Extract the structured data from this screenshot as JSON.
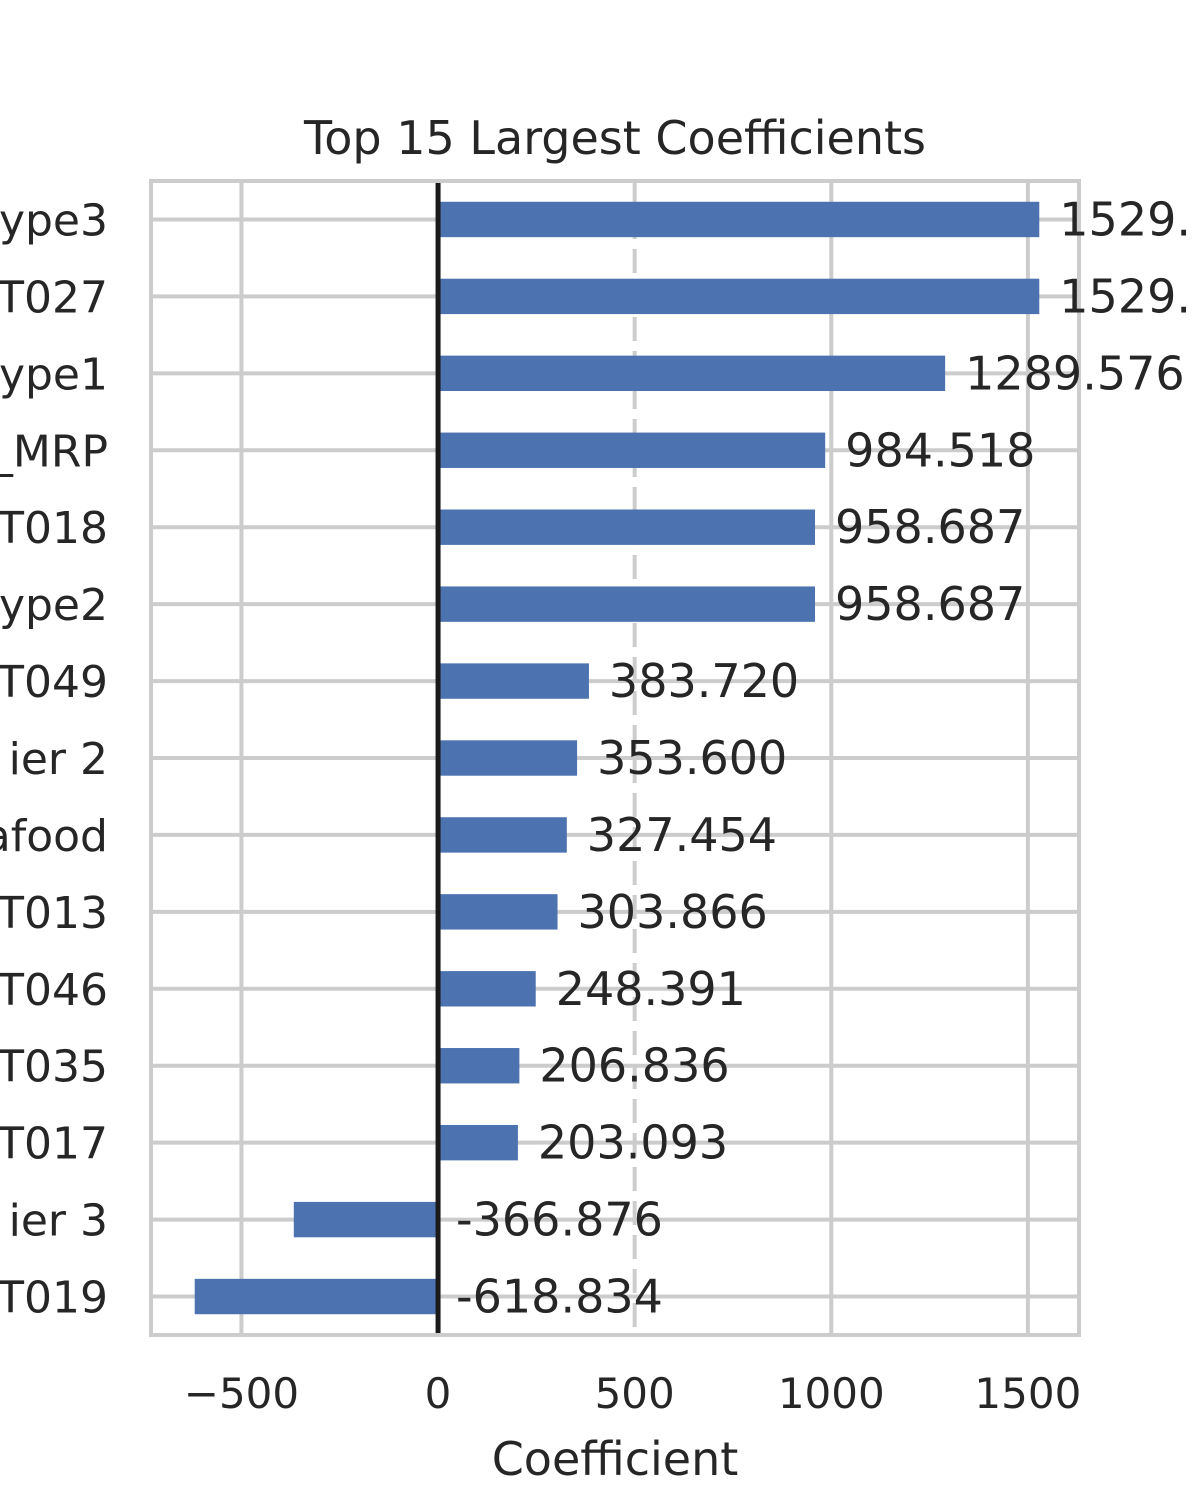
{
  "chart_data": {
    "type": "bar",
    "orientation": "horizontal",
    "title": "Top 15 Largest Coefficients",
    "xlabel": "Coefficient",
    "ylabel": "",
    "xlim": [
      -730,
      1630
    ],
    "xticks": [
      -500,
      0,
      500,
      1000,
      1500
    ],
    "xtick_labels": [
      "−500",
      "0",
      "500",
      "1000",
      "1500"
    ],
    "grid": true,
    "bar_color": "#4c72b0",
    "zero_line_color": "#1a1a1a",
    "categories": [
      "ype3",
      "T027",
      "ype1",
      "_MRP",
      "T018",
      "ype2",
      "T049",
      "ier 2",
      "afood",
      "T013",
      "T046",
      "T035",
      "T017",
      "ier 3",
      "T019"
    ],
    "values": [
      1529.0,
      1529.0,
      1289.576,
      984.518,
      958.687,
      958.687,
      383.72,
      353.6,
      327.454,
      303.866,
      248.391,
      206.836,
      203.093,
      -366.876,
      -618.834
    ],
    "value_labels": [
      "1529.",
      "1529.",
      "1289.576",
      "984.518",
      "958.687",
      "958.687",
      "383.720",
      "353.600",
      "327.454",
      "303.866",
      "248.391",
      "206.836",
      "203.093",
      "-366.876",
      "-618.834"
    ]
  }
}
